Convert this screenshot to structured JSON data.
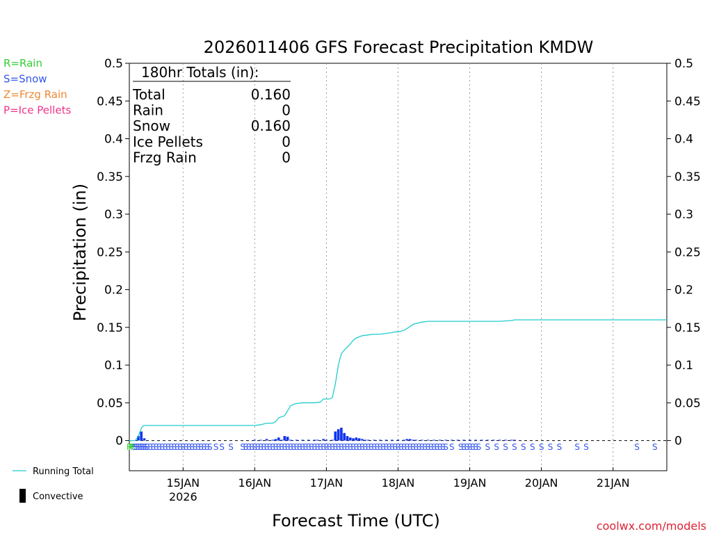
{
  "chart_data": {
    "type": "bar",
    "title": "2026011406 GFS Forecast Precipitation KMDW",
    "ylabel": "Precipitation (in)",
    "xlabel": "Forecast Time (UTC)",
    "ylim": [
      -0.04,
      0.5
    ],
    "xlim_hours": [
      6,
      186
    ],
    "y_ticks": [
      0,
      0.05,
      0.1,
      0.15,
      0.2,
      0.25,
      0.3,
      0.35,
      0.4,
      0.45,
      0.5
    ],
    "y_tick_labels": [
      "0",
      "0.05",
      "0.1",
      "0.15",
      "0.2",
      "0.25",
      "0.3",
      "0.35",
      "0.4",
      "0.45",
      "0.5"
    ],
    "x_ticks": [
      {
        "hour": 24,
        "label": "15JAN",
        "sub": "2026"
      },
      {
        "hour": 48,
        "label": "16JAN",
        "sub": ""
      },
      {
        "hour": 72,
        "label": "17JAN",
        "sub": ""
      },
      {
        "hour": 96,
        "label": "18JAN",
        "sub": ""
      },
      {
        "hour": 120,
        "label": "19JAN",
        "sub": ""
      },
      {
        "hour": 144,
        "label": "20JAN",
        "sub": ""
      },
      {
        "hour": 168,
        "label": "21JAN",
        "sub": ""
      }
    ],
    "legend_top": [
      {
        "label": "R=Rain",
        "color": "#33cc33"
      },
      {
        "label": "S=Snow",
        "color": "#3355ee"
      },
      {
        "label": "Z=Frzg Rain",
        "color": "#ee8833"
      },
      {
        "label": "P=Ice Pellets",
        "color": "#ee3388"
      }
    ],
    "legend_bottom": [
      {
        "label": "Running Total",
        "color": "#22cccc"
      },
      {
        "label": "Convective",
        "color": "#000000"
      }
    ],
    "totals": {
      "header": "180hr Totals (in):",
      "rows": [
        {
          "label": "Total",
          "value": "0.160"
        },
        {
          "label": "Rain",
          "value": "0"
        },
        {
          "label": "Snow",
          "value": "0.160"
        },
        {
          "label": "Ice Pellets",
          "value": "0"
        },
        {
          "label": "Frzg Rain",
          "value": "0"
        }
      ]
    },
    "series": [
      {
        "name": "Running Total",
        "color": "#22cccc",
        "points": [
          [
            6,
            0
          ],
          [
            8,
            0
          ],
          [
            9,
            0.006
          ],
          [
            10,
            0.016
          ],
          [
            10.5,
            0.019
          ],
          [
            11,
            0.02
          ],
          [
            20,
            0.02
          ],
          [
            30,
            0.02
          ],
          [
            40,
            0.02
          ],
          [
            47,
            0.02
          ],
          [
            48,
            0.02
          ],
          [
            50,
            0.021
          ],
          [
            52,
            0.023
          ],
          [
            54,
            0.023
          ],
          [
            55,
            0.025
          ],
          [
            56,
            0.03
          ],
          [
            58,
            0.033
          ],
          [
            60,
            0.046
          ],
          [
            61,
            0.048
          ],
          [
            62,
            0.049
          ],
          [
            64,
            0.05
          ],
          [
            66,
            0.05
          ],
          [
            68,
            0.05
          ],
          [
            70,
            0.051
          ],
          [
            71,
            0.055
          ],
          [
            72,
            0.055
          ],
          [
            73,
            0.055
          ],
          [
            74,
            0.057
          ],
          [
            75,
            0.075
          ],
          [
            76,
            0.1
          ],
          [
            77,
            0.115
          ],
          [
            78,
            0.12
          ],
          [
            79,
            0.124
          ],
          [
            80,
            0.128
          ],
          [
            81,
            0.133
          ],
          [
            82,
            0.136
          ],
          [
            84,
            0.139
          ],
          [
            86,
            0.14
          ],
          [
            88,
            0.141
          ],
          [
            90,
            0.141
          ],
          [
            92,
            0.142
          ],
          [
            94,
            0.143
          ],
          [
            95,
            0.144
          ],
          [
            96,
            0.144
          ],
          [
            98,
            0.146
          ],
          [
            100,
            0.151
          ],
          [
            101,
            0.154
          ],
          [
            102,
            0.155
          ],
          [
            104,
            0.157
          ],
          [
            106,
            0.158
          ],
          [
            110,
            0.158
          ],
          [
            120,
            0.158
          ],
          [
            130,
            0.158
          ],
          [
            134,
            0.159
          ],
          [
            135,
            0.16
          ],
          [
            150,
            0.16
          ],
          [
            186,
            0.16
          ]
        ]
      },
      {
        "name": "Precipitation",
        "color": "#1133ee",
        "points": [
          [
            9,
            0.006
          ],
          [
            10,
            0.012
          ],
          [
            11,
            0.003
          ],
          [
            48,
            0.001
          ],
          [
            50,
            0.001
          ],
          [
            52,
            0.002
          ],
          [
            54,
            0.001
          ],
          [
            55,
            0.002
          ],
          [
            56,
            0.004
          ],
          [
            57,
            0.001
          ],
          [
            58,
            0.006
          ],
          [
            59,
            0.005
          ],
          [
            60,
            0.001
          ],
          [
            62,
            0.001
          ],
          [
            64,
            0.001
          ],
          [
            66,
            0.001
          ],
          [
            68,
            0.001
          ],
          [
            69,
            0.001
          ],
          [
            71,
            0.002
          ],
          [
            72,
            0.001
          ],
          [
            74,
            0.001
          ],
          [
            75,
            0.012
          ],
          [
            76,
            0.015
          ],
          [
            77,
            0.017
          ],
          [
            78,
            0.01
          ],
          [
            79,
            0.006
          ],
          [
            80,
            0.004
          ],
          [
            81,
            0.003
          ],
          [
            82,
            0.004
          ],
          [
            83,
            0.003
          ],
          [
            84,
            0.002
          ],
          [
            85,
            0.001
          ],
          [
            86,
            0.001
          ],
          [
            88,
            0.001
          ],
          [
            90,
            0.001
          ],
          [
            92,
            0.001
          ],
          [
            94,
            0.001
          ],
          [
            96,
            0.001
          ],
          [
            98,
            0.001
          ],
          [
            99,
            0.002
          ],
          [
            100,
            0.002
          ],
          [
            101,
            0.001
          ],
          [
            102,
            0.001
          ],
          [
            104,
            0.001
          ],
          [
            106,
            0.001
          ],
          [
            108,
            0.001
          ],
          [
            110,
            0.001
          ],
          [
            112,
            0.001
          ],
          [
            114,
            0.001
          ],
          [
            116,
            0.001
          ],
          [
            118,
            0.001
          ],
          [
            120,
            0.001
          ],
          [
            122,
            0.001
          ],
          [
            124,
            0.001
          ],
          [
            126,
            0.001
          ],
          [
            128,
            0.001
          ],
          [
            130,
            0.001
          ],
          [
            132,
            0.001
          ],
          [
            134,
            0.001
          ],
          [
            135,
            0.001
          ]
        ]
      }
    ],
    "ptype_markers": {
      "R": {
        "color": "#33cc33",
        "hours": [
          6,
          6.6,
          7.2
        ]
      },
      "S": {
        "color": "#3355ee",
        "hours": [
          7.8,
          8.4,
          9,
          9.6,
          10.2,
          10.8,
          11.4,
          12,
          13,
          14,
          15,
          16,
          17,
          18,
          19,
          20,
          21,
          22,
          23,
          24,
          25,
          26,
          27,
          28,
          29,
          30,
          31,
          32,
          33,
          35,
          37,
          40,
          44,
          45,
          46,
          47,
          48,
          49,
          50,
          51,
          52,
          53,
          54,
          55,
          56,
          57,
          58,
          59,
          60,
          61,
          62,
          63,
          64,
          65,
          66,
          67,
          68,
          69,
          70,
          71,
          72,
          73,
          74,
          75,
          76,
          77,
          78,
          79,
          80,
          81,
          82,
          83,
          84,
          85,
          86,
          87,
          88,
          89,
          90,
          91,
          92,
          93,
          94,
          95,
          96,
          97,
          98,
          99,
          100,
          101,
          102,
          103,
          104,
          105,
          106,
          107,
          108,
          109,
          110,
          111,
          112,
          114,
          117,
          118,
          119,
          120,
          121,
          122,
          123,
          126,
          129,
          132,
          135,
          138,
          141,
          144,
          147,
          150,
          156,
          159,
          176,
          182
        ]
      }
    },
    "footer": "coolwx.com/models"
  }
}
